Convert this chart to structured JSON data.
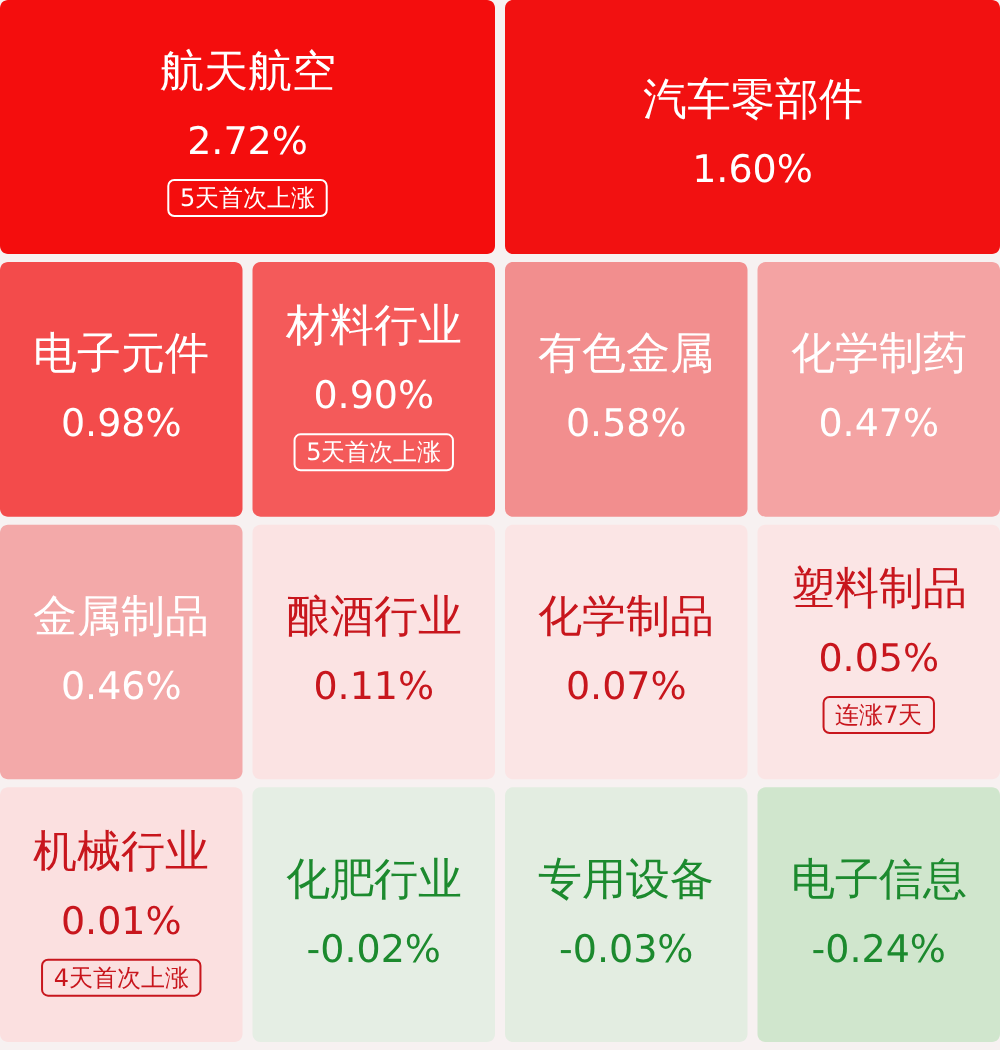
{
  "chart_data": {
    "type": "other",
    "categories": [
      "航天航空",
      "汽车零部件",
      "电子元件",
      "材料行业",
      "有色金属",
      "化学制药",
      "金属制品",
      "酿酒行业",
      "化学制品",
      "塑料制品",
      "机械行业",
      "化肥行业",
      "专用设备",
      "电子信息"
    ],
    "values": [
      2.72,
      1.6,
      0.98,
      0.9,
      0.58,
      0.47,
      0.46,
      0.11,
      0.07,
      0.05,
      0.01,
      -0.02,
      -0.03,
      -0.24
    ],
    "value_labels": [
      "2.72%",
      "1.60%",
      "0.98%",
      "0.90%",
      "0.58%",
      "0.47%",
      "0.46%",
      "0.11%",
      "0.07%",
      "0.05%",
      "0.01%",
      "-0.02%",
      "-0.03%",
      "-0.24%"
    ],
    "colors": [
      "#f40d0d",
      "#f21111",
      "#f34b4b",
      "#f45a5a",
      "#f28e8e",
      "#f4a3a3",
      "#f3a9a9",
      "#fbe3e3",
      "#fbe5e5",
      "#fbe5e5",
      "#fbe0e0",
      "#e5eee4",
      "#e3ede1",
      "#d0e6cd"
    ],
    "annotations": [
      {
        "text": "5天首次上涨",
        "x": "航天航空"
      },
      {
        "text": "5天首次上涨",
        "x": "材料行业"
      },
      {
        "text": "连涨7天",
        "x": "塑料制品"
      },
      {
        "text": "4天首次上涨",
        "x": "机械行业"
      }
    ]
  }
}
